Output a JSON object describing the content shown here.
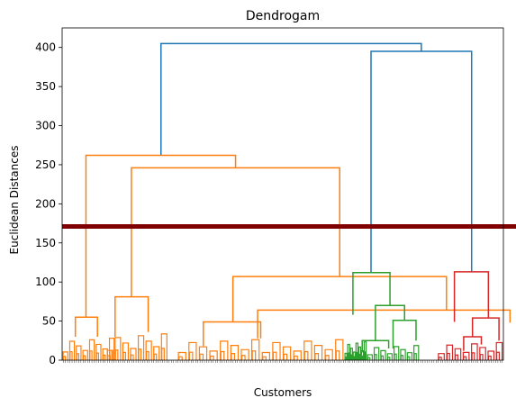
{
  "chart_data": {
    "type": "dendrogram",
    "title": "Dendrogam",
    "xlabel": "Customers",
    "ylabel": "Euclidean Distances",
    "ylim": [
      0,
      425
    ],
    "yticks": [
      0,
      50,
      100,
      150,
      200,
      250,
      300,
      350,
      400
    ],
    "grid": false,
    "leaf_count": 200,
    "threshold": {
      "value": 171,
      "color": "#800000"
    },
    "colors": {
      "c1": "#ff7f0e",
      "c2": "#2ca02c",
      "c3": "#d62728",
      "above": "#1f77b4",
      "lowdetail": "#ff7f0e"
    },
    "links": [
      {
        "name": "root-merge",
        "x": [
          22.4,
          81.4
        ],
        "y": 405,
        "left_height": 262,
        "right_height": 395,
        "color": "above"
      },
      {
        "name": "right-merge",
        "x": [
          70.0,
          92.8
        ],
        "y": 395,
        "left_height": 112,
        "right_height": 113,
        "color": "above"
      },
      {
        "name": "orange-top",
        "x": [
          5.4,
          39.3
        ],
        "y": 262,
        "left_height": 55,
        "right_height": 246,
        "color": "c1"
      },
      {
        "name": "orange-mid",
        "x": [
          15.7,
          62.9
        ],
        "y": 246,
        "left_height": 81,
        "right_height": 107,
        "color": "c1"
      },
      {
        "name": "orange-right",
        "x": [
          38.7,
          87.1
        ],
        "y": 107,
        "left_height": 49,
        "right_height": 64,
        "color": "c1"
      },
      {
        "name": "orange-rr",
        "x": [
          44.3,
          101.5
        ],
        "y": 64,
        "left_height": 28,
        "right_height": 48,
        "color": "c1"
      },
      {
        "name": "orange-leftl",
        "x": [
          3.0,
          8.0
        ],
        "y": 55,
        "left_height": 30,
        "right_height": 30,
        "color": "c1"
      },
      {
        "name": "orange-mid2",
        "x": [
          12.0,
          19.5
        ],
        "y": 81,
        "left_height": 30,
        "right_height": 36,
        "color": "c1"
      },
      {
        "name": "orange-rl",
        "x": [
          32.0,
          45.0
        ],
        "y": 49,
        "left_height": 18,
        "right_height": 28,
        "color": "c1"
      },
      {
        "name": "green-top",
        "x": [
          65.9,
          74.3
        ],
        "y": 112,
        "left_height": 58,
        "right_height": 70,
        "color": "c2"
      },
      {
        "name": "green-right",
        "x": [
          71.0,
          77.6
        ],
        "y": 70,
        "left_height": 25,
        "right_height": 51,
        "color": "c2"
      },
      {
        "name": "green-rr",
        "x": [
          75.0,
          80.2
        ],
        "y": 51,
        "left_height": 15,
        "right_height": 25,
        "color": "c2"
      },
      {
        "name": "green-rl",
        "x": [
          68.0,
          74.0
        ],
        "y": 25,
        "left_height": 10,
        "right_height": 15,
        "color": "c2"
      },
      {
        "name": "red-top",
        "x": [
          88.9,
          96.6
        ],
        "y": 113,
        "left_height": 49,
        "right_height": 54,
        "color": "c3"
      },
      {
        "name": "red-right",
        "x": [
          93.0,
          99.0
        ],
        "y": 54,
        "left_height": 30,
        "right_height": 25,
        "color": "c3"
      },
      {
        "name": "red-rl",
        "x": [
          91.0,
          95.0
        ],
        "y": 30,
        "left_height": 12,
        "right_height": 20,
        "color": "c3"
      }
    ],
    "low_clusters": [
      {
        "x": [
          0,
          12
        ],
        "top": 30,
        "color": "lowdetail"
      },
      {
        "x": [
          10,
          24
        ],
        "top": 36,
        "color": "lowdetail"
      },
      {
        "x": [
          26,
          45
        ],
        "top": 28,
        "color": "lowdetail"
      },
      {
        "x": [
          45,
          64
        ],
        "top": 28,
        "color": "lowdetail"
      },
      {
        "x": [
          64,
          69
        ],
        "top": 25,
        "color": "c2"
      },
      {
        "x": [
          69,
          81
        ],
        "top": 20,
        "color": "c2"
      },
      {
        "x": [
          85,
          100
        ],
        "top": 24,
        "color": "c3"
      }
    ]
  }
}
